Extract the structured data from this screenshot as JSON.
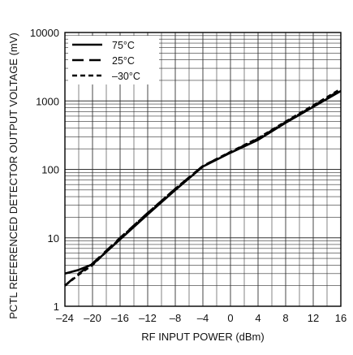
{
  "chart_data": {
    "type": "line",
    "xlabel": "RF INPUT POWER (dBm)",
    "ylabel": "PCTL REFERENCED DETECTOR OUTPUT VOLTAGE (mV)",
    "xlim": [
      -24,
      16
    ],
    "ylim": [
      1,
      10000
    ],
    "y_scale": "log",
    "x_ticks": [
      "–24",
      "–20",
      "–16",
      "–12",
      "–8",
      "–4",
      "0",
      "4",
      "8",
      "12",
      "16"
    ],
    "y_ticks": [
      "1",
      "10",
      "100",
      "1000",
      "10000"
    ],
    "grid": true,
    "legend_position": "top-left",
    "series": [
      {
        "name": "75°C",
        "style": "solid",
        "x": [
          -24,
          -22,
          -20,
          -16,
          -12,
          -8,
          -4,
          0,
          4,
          8,
          12,
          16
        ],
        "y": [
          3.0,
          3.4,
          4.1,
          9.5,
          22,
          50,
          110,
          175,
          270,
          480,
          820,
          1400
        ]
      },
      {
        "name": "25°C",
        "style": "long-dash",
        "x": [
          -24,
          -22,
          -20,
          -16,
          -12,
          -8,
          -4,
          0,
          4,
          8,
          12,
          16
        ],
        "y": [
          2.0,
          3.0,
          4.2,
          10,
          23,
          52,
          112,
          178,
          280,
          490,
          840,
          1450
        ]
      },
      {
        "name": "–30°C",
        "style": "short-dash",
        "x": [
          -24,
          -22,
          -20,
          -16,
          -12,
          -8,
          -4,
          0,
          4,
          8,
          12,
          16
        ],
        "y": [
          2.0,
          2.9,
          4.0,
          9.8,
          23,
          52,
          112,
          180,
          285,
          500,
          860,
          1500
        ]
      }
    ]
  }
}
